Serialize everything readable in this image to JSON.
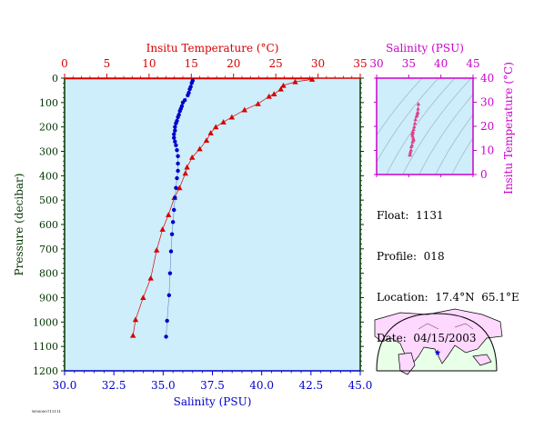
{
  "colors": {
    "temp": "#d80000",
    "salinity": "#0000cc",
    "inset": "#cc00cc",
    "axis_dark": "#003300",
    "plot_bg": "#cdeefa",
    "land": "#ffd8ff",
    "sea": "#e8ffe8"
  },
  "info": {
    "float_label": "Float:",
    "float_value": "1131",
    "profile_label": "Profile:",
    "profile_value": "018",
    "location_label": "Location:",
    "location_value": "17.4°N  65.1°E",
    "date_label": "Date:",
    "date_value": "04/15/2003"
  },
  "footer_code": "W00000711111",
  "chart_data": [
    {
      "type": "line",
      "title": "",
      "ylabel": "Pressure (decibar)",
      "ylim": [
        0,
        1200
      ],
      "y_inverted": true,
      "y_ticks": [
        0,
        100,
        200,
        300,
        400,
        500,
        600,
        700,
        800,
        900,
        1000,
        1100,
        1200
      ],
      "top_axis": {
        "label": "Insitu Temperature (°C)",
        "lim": [
          0,
          35
        ],
        "ticks": [
          0,
          5,
          10,
          15,
          20,
          25,
          30,
          35
        ]
      },
      "bottom_axis": {
        "label": "Salinity (PSU)",
        "lim": [
          30,
          45
        ],
        "ticks": [
          "30.0",
          "32.5",
          "35.0",
          "37.5",
          "40.0",
          "42.5",
          "45.0"
        ]
      },
      "series": [
        {
          "name": "",
          "axis": "top",
          "marker": "triangle",
          "points": [
            [
              29.3,
              5
            ],
            [
              27.3,
              15
            ],
            [
              25.9,
              30
            ],
            [
              25.6,
              45
            ],
            [
              24.8,
              65
            ],
            [
              24.2,
              75
            ],
            [
              22.9,
              105
            ],
            [
              21.3,
              130
            ],
            [
              19.8,
              160
            ],
            [
              18.8,
              180
            ],
            [
              17.9,
              200
            ],
            [
              17.3,
              225
            ],
            [
              16.8,
              255
            ],
            [
              16.0,
              290
            ],
            [
              15.1,
              325
            ],
            [
              14.5,
              365
            ],
            [
              14.3,
              390
            ],
            [
              13.6,
              450
            ],
            [
              13.0,
              490
            ],
            [
              12.3,
              560
            ],
            [
              11.6,
              620
            ],
            [
              10.9,
              705
            ],
            [
              10.2,
              820
            ],
            [
              9.3,
              900
            ],
            [
              8.4,
              990
            ],
            [
              8.1,
              1055
            ]
          ]
        },
        {
          "name": "",
          "axis": "bottom",
          "marker": "circle",
          "points": [
            [
              36.5,
              10
            ],
            [
              36.45,
              20
            ],
            [
              36.4,
              35
            ],
            [
              36.35,
              45
            ],
            [
              36.3,
              60
            ],
            [
              36.25,
              70
            ],
            [
              36.1,
              90
            ],
            [
              36.0,
              100
            ],
            [
              35.95,
              115
            ],
            [
              35.9,
              125
            ],
            [
              35.85,
              135
            ],
            [
              35.8,
              150
            ],
            [
              35.75,
              160
            ],
            [
              35.7,
              175
            ],
            [
              35.65,
              185
            ],
            [
              35.6,
              200
            ],
            [
              35.6,
              215
            ],
            [
              35.55,
              230
            ],
            [
              35.55,
              245
            ],
            [
              35.6,
              260
            ],
            [
              35.65,
              275
            ],
            [
              35.7,
              295
            ],
            [
              35.75,
              320
            ],
            [
              35.75,
              350
            ],
            [
              35.75,
              380
            ],
            [
              35.7,
              410
            ],
            [
              35.65,
              450
            ],
            [
              35.6,
              490
            ],
            [
              35.55,
              540
            ],
            [
              35.5,
              590
            ],
            [
              35.45,
              640
            ],
            [
              35.4,
              710
            ],
            [
              35.35,
              800
            ],
            [
              35.3,
              890
            ],
            [
              35.2,
              995
            ],
            [
              35.15,
              1060
            ]
          ]
        }
      ]
    },
    {
      "type": "scatter",
      "title": "",
      "xlabel": "Salinity (PSU)",
      "ylabel": "Insitu Temperature (°C)",
      "xlim": [
        30,
        45
      ],
      "ylim": [
        0,
        40
      ],
      "x_ticks": [
        30,
        35,
        40,
        45
      ],
      "y_ticks": [
        0,
        10,
        20,
        30,
        40
      ],
      "series": [
        {
          "name": "",
          "marker": "triangle",
          "points": [
            [
              36.5,
              29.3
            ],
            [
              36.45,
              27.3
            ],
            [
              36.4,
              25.9
            ],
            [
              36.35,
              25.6
            ],
            [
              36.3,
              24.8
            ],
            [
              36.2,
              24.2
            ],
            [
              36.05,
              22.9
            ],
            [
              35.95,
              21.3
            ],
            [
              35.85,
              19.8
            ],
            [
              35.75,
              18.8
            ],
            [
              35.65,
              17.9
            ],
            [
              35.6,
              17.3
            ],
            [
              35.55,
              16.8
            ],
            [
              35.6,
              16.0
            ],
            [
              35.7,
              15.1
            ],
            [
              35.75,
              14.5
            ],
            [
              35.7,
              14.3
            ],
            [
              35.6,
              13.6
            ],
            [
              35.5,
              12.3
            ],
            [
              35.4,
              11.6
            ],
            [
              35.35,
              10.2
            ],
            [
              35.25,
              9.3
            ],
            [
              35.2,
              8.4
            ],
            [
              35.15,
              8.1
            ]
          ]
        }
      ]
    }
  ]
}
